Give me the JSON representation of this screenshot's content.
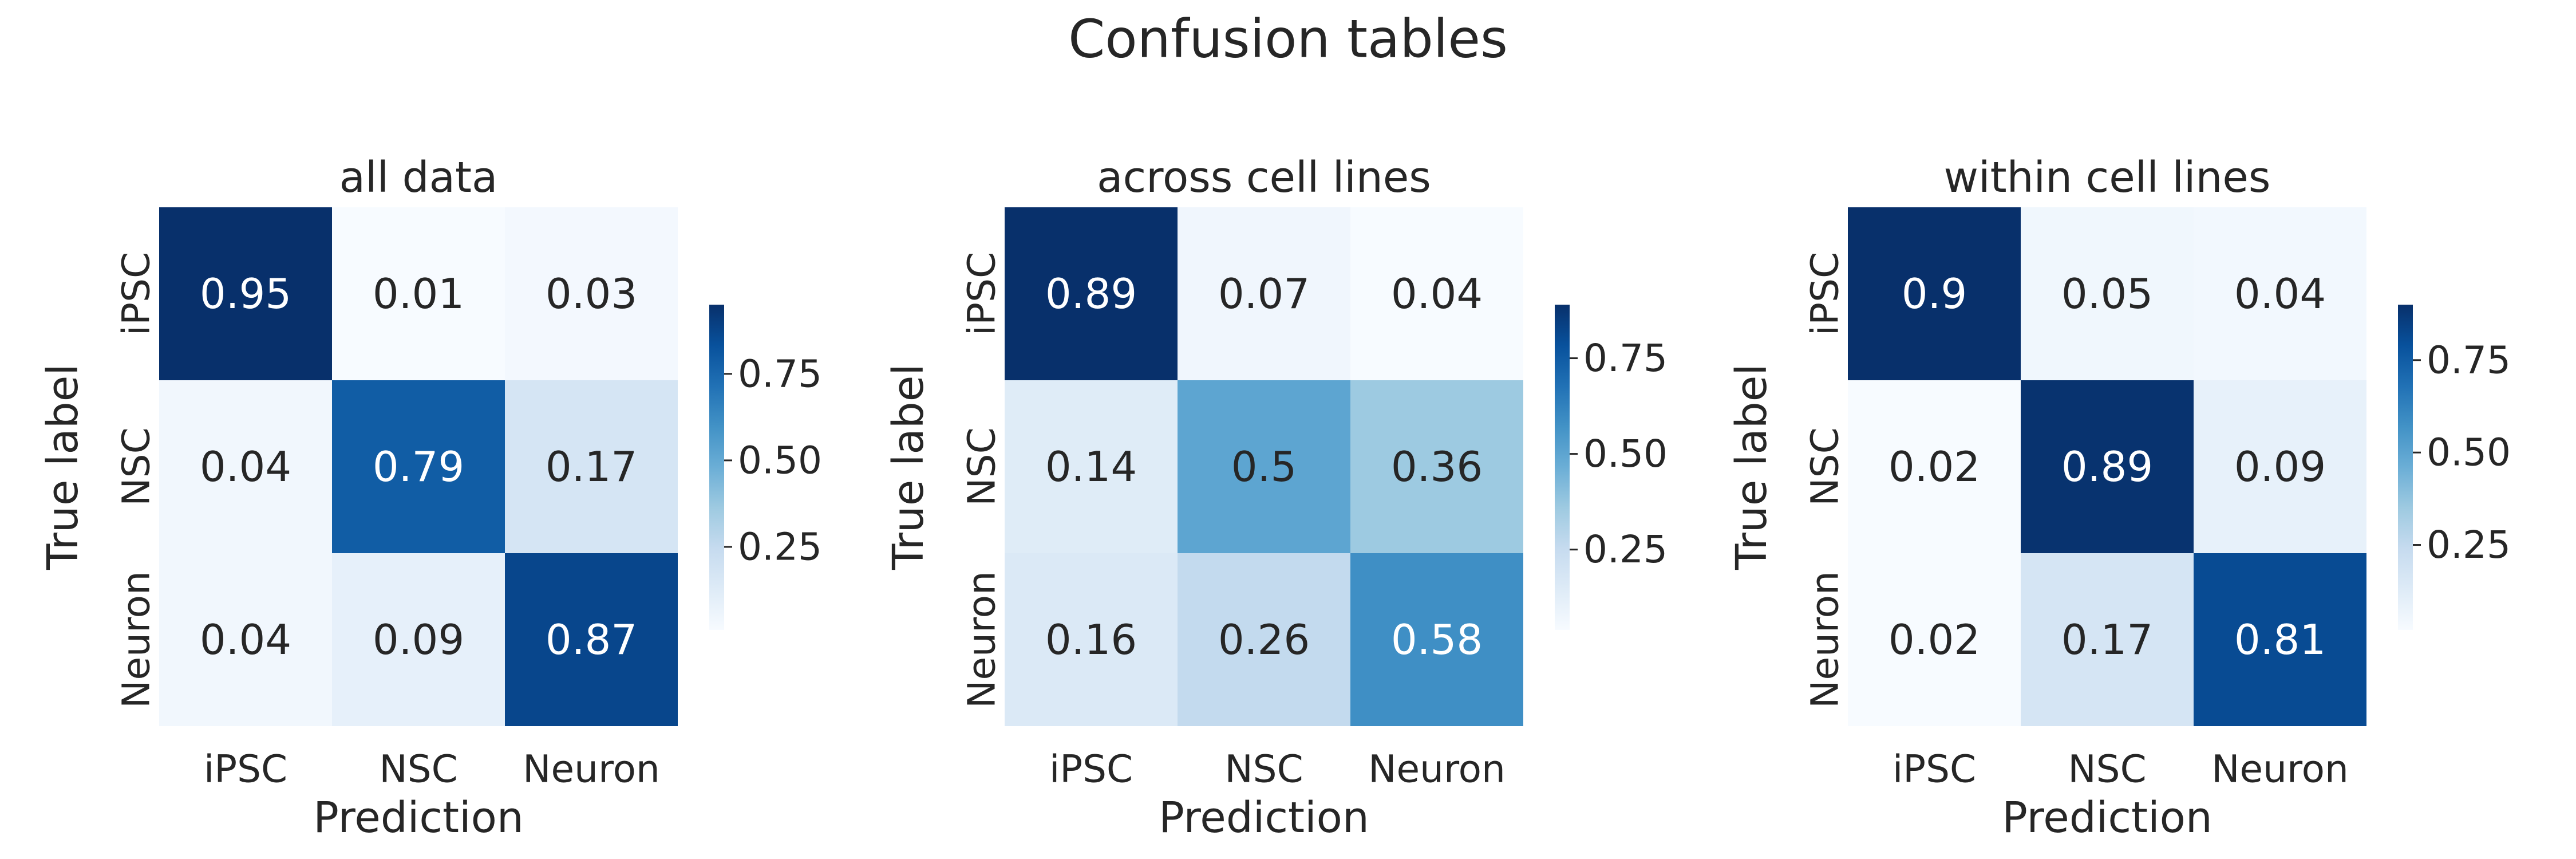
{
  "figure": {
    "title": "Confusion tables"
  },
  "chart_data": [
    {
      "type": "heatmap",
      "title": "all data",
      "xlabel": "Prediction",
      "ylabel": "True label",
      "x_categories": [
        "iPSC",
        "NSC",
        "Neuron"
      ],
      "y_categories": [
        "iPSC",
        "NSC",
        "Neuron"
      ],
      "values": [
        [
          0.95,
          0.01,
          0.03
        ],
        [
          0.04,
          0.79,
          0.17
        ],
        [
          0.04,
          0.09,
          0.87
        ]
      ],
      "cell_labels": [
        [
          "0.95",
          "0.01",
          "0.03"
        ],
        [
          "0.04",
          "0.79",
          "0.17"
        ],
        [
          "0.04",
          "0.09",
          "0.87"
        ]
      ],
      "colormap": "Blues",
      "colorbar": {
        "range": [
          0.01,
          0.95
        ],
        "ticks": [
          0.25,
          0.5,
          0.75
        ],
        "tick_labels": [
          "0.25",
          "0.50",
          "0.75"
        ]
      }
    },
    {
      "type": "heatmap",
      "title": "across cell lines",
      "xlabel": "Prediction",
      "ylabel": "True label",
      "x_categories": [
        "iPSC",
        "NSC",
        "Neuron"
      ],
      "y_categories": [
        "iPSC",
        "NSC",
        "Neuron"
      ],
      "values": [
        [
          0.89,
          0.07,
          0.04
        ],
        [
          0.14,
          0.5,
          0.36
        ],
        [
          0.16,
          0.26,
          0.58
        ]
      ],
      "cell_labels": [
        [
          "0.89",
          "0.07",
          "0.04"
        ],
        [
          "0.14",
          "0.5",
          "0.36"
        ],
        [
          "0.16",
          "0.26",
          "0.58"
        ]
      ],
      "colormap": "Blues",
      "colorbar": {
        "range": [
          0.04,
          0.89
        ],
        "ticks": [
          0.25,
          0.5,
          0.75
        ],
        "tick_labels": [
          "0.25",
          "0.50",
          "0.75"
        ]
      }
    },
    {
      "type": "heatmap",
      "title": "within cell lines",
      "xlabel": "Prediction",
      "ylabel": "True label",
      "x_categories": [
        "iPSC",
        "NSC",
        "Neuron"
      ],
      "y_categories": [
        "iPSC",
        "NSC",
        "Neuron"
      ],
      "values": [
        [
          0.9,
          0.05,
          0.04
        ],
        [
          0.02,
          0.89,
          0.09
        ],
        [
          0.02,
          0.17,
          0.81
        ]
      ],
      "cell_labels": [
        [
          "0.9",
          "0.05",
          "0.04"
        ],
        [
          "0.02",
          "0.89",
          "0.09"
        ],
        [
          "0.02",
          "0.17",
          "0.81"
        ]
      ],
      "colormap": "Blues",
      "colorbar": {
        "range": [
          0.02,
          0.9
        ],
        "ticks": [
          0.25,
          0.5,
          0.75
        ],
        "tick_labels": [
          "0.25",
          "0.50",
          "0.75"
        ]
      }
    }
  ]
}
